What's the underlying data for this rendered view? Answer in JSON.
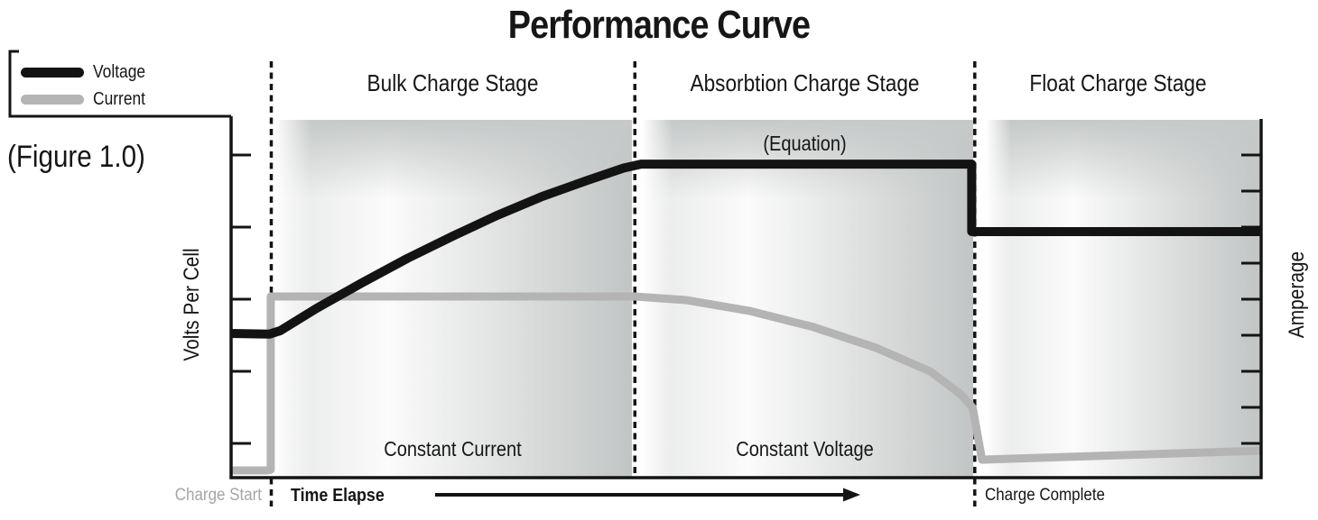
{
  "title": "Performance Curve",
  "figure_caption": "(Figure 1.0)",
  "legend": {
    "position": "top-left",
    "items": [
      {
        "label": "Voltage",
        "color": "#131313"
      },
      {
        "label": "Current",
        "color": "#b4b4b4"
      }
    ]
  },
  "axes": {
    "x_label": "Time Elapse",
    "y_left_label": "Volts Per Cell",
    "y_right_label": "Amperage"
  },
  "stages": [
    {
      "label": "Bulk Charge Stage",
      "annotation": "Constant Current"
    },
    {
      "label": "Absorbtion Charge Stage",
      "annotation": "Constant Voltage",
      "annotation_top": "(Equation)"
    },
    {
      "label": "Float Charge Stage"
    }
  ],
  "markers": {
    "start": "Charge Start",
    "complete": "Charge Complete"
  },
  "colors": {
    "voltage_line": "#131313",
    "current_line": "#b4b4b4",
    "axis": "#141414",
    "panel_gray": "#c5c8c8",
    "muted_text": "#a6a6a6"
  },
  "chart_data": {
    "type": "line",
    "title": "Performance Curve",
    "xlabel": "Time Elapse",
    "ylabel_left": "Volts Per Cell",
    "ylabel_right": "Amperage",
    "grid": false,
    "legend_position": "top-left",
    "x_range": [
      0,
      100
    ],
    "y_range": [
      0,
      100
    ],
    "units": "relative (axes unlabeled in figure)",
    "y_left_axis": {
      "tick_count": 5
    },
    "y_right_axis": {
      "tick_count": 9
    },
    "stage_boundaries": [
      {
        "name": "charge-start",
        "t": 3.9,
        "extends_below_axis": true
      },
      {
        "name": "bulk-to-absorbtion",
        "t": 39.2,
        "extends_below_axis": false
      },
      {
        "name": "absorbtion-to-float (charge complete)",
        "t": 72.2,
        "extends_below_axis": true
      }
    ],
    "annotations": [
      "(Equation)",
      "Constant Current",
      "Constant Voltage",
      "Charge Start",
      "Charge Complete",
      "(Figure 1.0)"
    ],
    "series": [
      {
        "name": "Current",
        "color": "#b4b4b4",
        "stroke_width": 9,
        "points": [
          [
            0,
            2
          ],
          [
            3.5,
            2
          ],
          [
            3.85,
            2.2
          ],
          [
            3.85,
            50.5
          ],
          [
            4.5,
            50.5
          ],
          [
            39.2,
            50.5
          ],
          [
            44.2,
            49.5
          ],
          [
            50.3,
            46.5
          ],
          [
            56.5,
            42
          ],
          [
            62.6,
            36.2
          ],
          [
            67.9,
            29.6
          ],
          [
            70.9,
            23.1
          ],
          [
            72,
            19.5
          ],
          [
            72.9,
            5
          ],
          [
            75,
            5.2
          ],
          [
            99.9,
            7.5
          ]
        ]
      },
      {
        "name": "Voltage",
        "color": "#131313",
        "stroke_width": 10,
        "points": [
          [
            0,
            40.2
          ],
          [
            3.7,
            40
          ],
          [
            4.8,
            41
          ],
          [
            8.3,
            47.2
          ],
          [
            12.7,
            54.3
          ],
          [
            17.1,
            61.1
          ],
          [
            21.5,
            67.3
          ],
          [
            25.8,
            73.1
          ],
          [
            30.2,
            78.4
          ],
          [
            34.6,
            82.9
          ],
          [
            38.1,
            86.3
          ],
          [
            39.8,
            87.4
          ],
          [
            71.9,
            87.4
          ],
          [
            71.9,
            68.6
          ],
          [
            100,
            68.6
          ]
        ]
      }
    ]
  }
}
